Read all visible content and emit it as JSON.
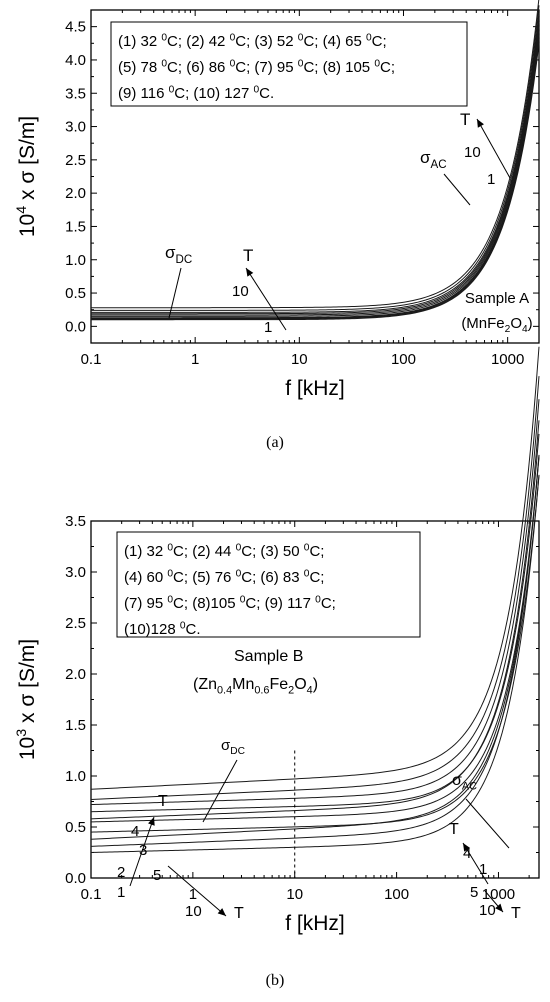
{
  "chart_data": [
    {
      "type": "line",
      "panel_label": "(a)",
      "xlabel": "f [kHz]",
      "ylabel": {
        "base": "10",
        "sup": "4",
        "rest": " x σ [S/m]"
      },
      "xscale": "log",
      "xlim": [
        0.1,
        2000
      ],
      "ylim": [
        -0.25,
        4.75
      ],
      "xticks": [
        0.1,
        1,
        10,
        100,
        1000
      ],
      "xtick_labels": [
        "0.1",
        "1",
        "10",
        "100",
        "1000"
      ],
      "yticks": [
        0.0,
        0.5,
        1.0,
        1.5,
        2.0,
        2.5,
        3.0,
        3.5,
        4.0,
        4.5
      ],
      "ytick_labels": [
        "0.0",
        "0.5",
        "1.0",
        "1.5",
        "2.0",
        "2.5",
        "3.0",
        "3.5",
        "4.0",
        "4.5"
      ],
      "legend_lines": [
        [
          {
            "t": "(1) 32 "
          },
          {
            "s": "0"
          },
          {
            "t": "C; (2) 42 "
          },
          {
            "s": "0"
          },
          {
            "t": "C; (3) 52 "
          },
          {
            "s": "0"
          },
          {
            "t": "C; (4) 65 "
          },
          {
            "s": "0"
          },
          {
            "t": "C;"
          }
        ],
        [
          {
            "t": "(5) 78 "
          },
          {
            "s": "0"
          },
          {
            "t": "C; (6) 86 "
          },
          {
            "s": "0"
          },
          {
            "t": "C; (7) 95 "
          },
          {
            "s": "0"
          },
          {
            "t": "C; (8) 105 "
          },
          {
            "s": "0"
          },
          {
            "t": "C;"
          }
        ],
        [
          {
            "t": "(9) 116 "
          },
          {
            "s": "0"
          },
          {
            "t": "C; (10) 127 "
          },
          {
            "s": "0"
          },
          {
            "t": "C."
          }
        ]
      ],
      "annotations": {
        "sample": "Sample A",
        "compound": [
          {
            "t": "(MnFe"
          },
          {
            "b": "2"
          },
          {
            "t": "O"
          },
          {
            "b": "4"
          },
          {
            "t": ")"
          }
        ],
        "sigma_dc": [
          {
            "t": "σ"
          },
          {
            "b": "DC"
          }
        ],
        "sigma_ac": [
          {
            "t": "σ"
          },
          {
            "b": "AC"
          }
        ],
        "T": "T",
        "n1": "1",
        "n10": "10"
      },
      "series": [
        {
          "sdc": 0.1,
          "A": 4.15
        },
        {
          "sdc": 0.11,
          "A": 4.2
        },
        {
          "sdc": 0.12,
          "A": 4.25
        },
        {
          "sdc": 0.13,
          "A": 4.3
        },
        {
          "sdc": 0.15,
          "A": 4.35
        },
        {
          "sdc": 0.17,
          "A": 4.4
        },
        {
          "sdc": 0.19,
          "A": 4.45
        },
        {
          "sdc": 0.21,
          "A": 4.5
        },
        {
          "sdc": 0.24,
          "A": 4.58
        },
        {
          "sdc": 0.28,
          "A": 4.65
        }
      ]
    },
    {
      "type": "line",
      "panel_label": "(b)",
      "xlabel": "f [kHz]",
      "ylabel": {
        "base": "10",
        "sup": "3",
        "rest": " x σ [S/m]"
      },
      "xscale": "log",
      "xlim": [
        0.1,
        2500
      ],
      "ylim": [
        0.0,
        3.5
      ],
      "xticks": [
        0.1,
        1,
        10,
        100,
        1000
      ],
      "xtick_labels": [
        "0.1",
        "1",
        "10",
        "100",
        "1000"
      ],
      "yticks": [
        0.0,
        0.5,
        1.0,
        1.5,
        2.0,
        2.5,
        3.0,
        3.5
      ],
      "ytick_labels": [
        "0.0",
        "0.5",
        "1.0",
        "1.5",
        "2.0",
        "2.5",
        "3.0",
        "3.5"
      ],
      "vline_x": 10,
      "legend_lines": [
        [
          {
            "t": "(1) 32 "
          },
          {
            "s": "0"
          },
          {
            "t": "C; (2) 44 "
          },
          {
            "s": "0"
          },
          {
            "t": "C; (3) 50 "
          },
          {
            "s": "0"
          },
          {
            "t": "C;"
          }
        ],
        [
          {
            "t": "(4) 60 "
          },
          {
            "s": "0"
          },
          {
            "t": "C; (5) 76 "
          },
          {
            "s": "0"
          },
          {
            "t": "C; (6) 83 "
          },
          {
            "s": "0"
          },
          {
            "t": "C;"
          }
        ],
        [
          {
            "t": "(7) 95 "
          },
          {
            "s": "0"
          },
          {
            "t": "C; (8)105 "
          },
          {
            "s": "0"
          },
          {
            "t": "C; (9) 117 "
          },
          {
            "s": "0"
          },
          {
            "t": "C;"
          }
        ],
        [
          {
            "t": "(10)128 "
          },
          {
            "s": "0"
          },
          {
            "t": "C."
          }
        ]
      ],
      "annotations": {
        "sample": "Sample B",
        "compound": [
          {
            "t": "(Zn"
          },
          {
            "b": "0.4"
          },
          {
            "t": "Mn"
          },
          {
            "b": "0.6"
          },
          {
            "t": "Fe"
          },
          {
            "b": "2"
          },
          {
            "t": "O"
          },
          {
            "b": "4"
          },
          {
            "t": ")"
          }
        ],
        "sigma_dc": [
          {
            "t": "σ"
          },
          {
            "b": "DC"
          }
        ],
        "sigma_ac": [
          {
            "t": "σ"
          },
          {
            "b": "AC"
          }
        ],
        "T": "T",
        "n4": "4",
        "n3": "3",
        "n2": "2",
        "n1": "1",
        "n5": "5",
        "n10": "10"
      },
      "series": [
        {
          "v0": 0.45,
          "v10": 0.5,
          "A": 2.45
        },
        {
          "v0": 0.55,
          "v10": 0.6,
          "A": 2.52
        },
        {
          "v0": 0.65,
          "v10": 0.7,
          "A": 2.6
        },
        {
          "v0": 0.87,
          "v10": 0.97,
          "A": 2.98
        },
        {
          "v0": 0.38,
          "v10": 0.48,
          "A": 2.55
        },
        {
          "v0": 0.31,
          "v10": 0.39,
          "A": 2.65
        },
        {
          "v0": 0.58,
          "v10": 0.66,
          "A": 2.7
        },
        {
          "v0": 0.72,
          "v10": 0.78,
          "A": 2.78
        },
        {
          "v0": 0.77,
          "v10": 0.86,
          "A": 2.86
        },
        {
          "v0": 0.25,
          "v10": 0.3,
          "A": 2.6
        }
      ]
    }
  ]
}
